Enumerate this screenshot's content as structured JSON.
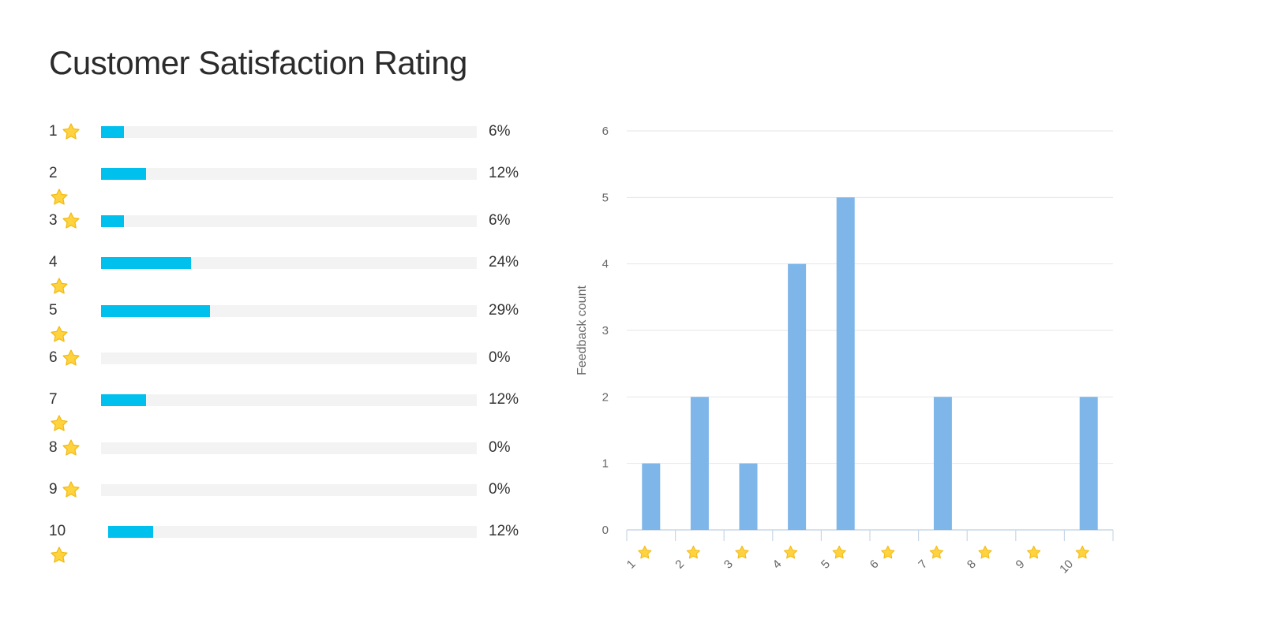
{
  "header": {
    "title": "Customer Satisfaction Rating"
  },
  "ratings": [
    {
      "label": "1",
      "percent_text": "6%",
      "fill": 0.06,
      "star_inline": true
    },
    {
      "label": "2",
      "percent_text": "12%",
      "fill": 0.12,
      "star_inline": false
    },
    {
      "label": "3",
      "percent_text": "6%",
      "fill": 0.06,
      "star_inline": true
    },
    {
      "label": "4",
      "percent_text": "24%",
      "fill": 0.24,
      "star_inline": false
    },
    {
      "label": "5",
      "percent_text": "29%",
      "fill": 0.29,
      "star_inline": false
    },
    {
      "label": "6",
      "percent_text": "0%",
      "fill": 0.0,
      "star_inline": true
    },
    {
      "label": "7",
      "percent_text": "12%",
      "fill": 0.12,
      "star_inline": false
    },
    {
      "label": "8",
      "percent_text": "0%",
      "fill": 0.0,
      "star_inline": true
    },
    {
      "label": "9",
      "percent_text": "0%",
      "fill": 0.0,
      "star_inline": true
    },
    {
      "label": "10",
      "percent_text": "12%",
      "fill": 0.12,
      "star_inline": false
    }
  ],
  "icons": {
    "rating": "star-icon"
  },
  "colors": {
    "progress_fill": "#00c0ee",
    "progress_track": "#f3f3f3",
    "bar": "#7eb6ea",
    "star": "#ffd23f",
    "star_stroke": "#f2b90c",
    "grid": "#e6e6e6",
    "axis": "#c9d7e6"
  },
  "chart_data": {
    "type": "bar",
    "categories": [
      "1",
      "2",
      "3",
      "4",
      "5",
      "6",
      "7",
      "8",
      "9",
      "10"
    ],
    "values": [
      1,
      2,
      1,
      4,
      5,
      0,
      2,
      0,
      0,
      2
    ],
    "ylabel": "Feedback count",
    "xlabel": "",
    "ylim": [
      0,
      6
    ],
    "yticks": [
      "0",
      "1",
      "2",
      "3",
      "4",
      "5",
      "6"
    ],
    "grid": true,
    "x_tick_icon": "star-icon"
  }
}
